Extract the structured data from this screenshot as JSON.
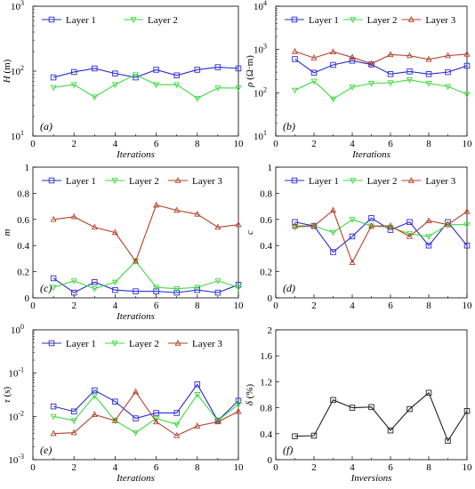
{
  "colors": {
    "blue": "#2b2bd6",
    "green": "#3fd93f",
    "red": "#b5402a",
    "black": "#222222"
  },
  "chart_data": [
    {
      "id": "a",
      "type": "line",
      "panel_label": "(a)",
      "ylabel_main": "H",
      "ylabel_unit": " (m)",
      "xlabel": "Iterations",
      "yscale": "log",
      "ylim": [
        10,
        1000
      ],
      "xlim": [
        0,
        10
      ],
      "xticks": [
        0,
        2,
        4,
        6,
        8,
        10
      ],
      "yticks": [
        {
          "v": 10,
          "label": "10",
          "exp": "1"
        },
        {
          "v": 100,
          "label": "10",
          "exp": "2"
        },
        {
          "v": 1000,
          "label": "10",
          "exp": "3"
        }
      ],
      "x": [
        1,
        2,
        3,
        4,
        5,
        6,
        7,
        8,
        9,
        10
      ],
      "legend": "top",
      "series": [
        {
          "name": "Layer 1",
          "color": "#2b2bd6",
          "marker": "square",
          "values": [
            80,
            97,
            110,
            92,
            80,
            105,
            86,
            105,
            115,
            110
          ]
        },
        {
          "name": "Layer 2",
          "color": "#3fd93f",
          "marker": "tri-down",
          "values": [
            56,
            62,
            40,
            62,
            88,
            62,
            62,
            38,
            55,
            55
          ]
        }
      ]
    },
    {
      "id": "b",
      "type": "line",
      "panel_label": "(b)",
      "ylabel_main": "ρ",
      "ylabel_unit": " (Ω·m)",
      "xlabel": "Iterations",
      "yscale": "log",
      "ylim": [
        10,
        10000
      ],
      "xlim": [
        0,
        10
      ],
      "xticks": [
        0,
        2,
        4,
        6,
        8,
        10
      ],
      "yticks": [
        {
          "v": 10,
          "label": "10",
          "exp": "1"
        },
        {
          "v": 100,
          "label": "10",
          "exp": "2"
        },
        {
          "v": 1000,
          "label": "10",
          "exp": "3"
        },
        {
          "v": 10000,
          "label": "10",
          "exp": "4"
        }
      ],
      "x": [
        1,
        2,
        3,
        4,
        5,
        6,
        7,
        8,
        9,
        10
      ],
      "legend": "top",
      "series": [
        {
          "name": "Layer 1",
          "color": "#2b2bd6",
          "marker": "square",
          "values": [
            600,
            290,
            440,
            550,
            450,
            270,
            310,
            270,
            300,
            420
          ]
        },
        {
          "name": "Layer 2",
          "color": "#3fd93f",
          "marker": "tri-down",
          "values": [
            115,
            185,
            72,
            135,
            165,
            170,
            200,
            165,
            140,
            92
          ]
        },
        {
          "name": "Layer 3",
          "color": "#b5402a",
          "marker": "tri-up",
          "values": [
            900,
            640,
            880,
            660,
            470,
            760,
            720,
            590,
            720,
            780
          ]
        }
      ]
    },
    {
      "id": "c",
      "type": "line",
      "panel_label": "(c)",
      "ylabel_main": "m",
      "ylabel_unit": "",
      "xlabel": "Iterations",
      "yscale": "linear",
      "ylim": [
        0,
        1
      ],
      "xlim": [
        0,
        10
      ],
      "xticks": [
        0,
        2,
        4,
        6,
        8,
        10
      ],
      "yticks": [
        {
          "v": 0,
          "label": "0"
        },
        {
          "v": 0.2,
          "label": "0.2"
        },
        {
          "v": 0.4,
          "label": "0.4"
        },
        {
          "v": 0.6,
          "label": "0.6"
        },
        {
          "v": 0.8,
          "label": "0.8"
        },
        {
          "v": 1,
          "label": "1"
        }
      ],
      "x": [
        1,
        2,
        3,
        4,
        5,
        6,
        7,
        8,
        9,
        10
      ],
      "legend": "top",
      "series": [
        {
          "name": "Layer 1",
          "color": "#2b2bd6",
          "marker": "square",
          "values": [
            0.15,
            0.04,
            0.12,
            0.06,
            0.05,
            0.05,
            0.04,
            0.06,
            0.04,
            0.1
          ]
        },
        {
          "name": "Layer 2",
          "color": "#3fd93f",
          "marker": "tri-down",
          "values": [
            0.08,
            0.13,
            0.07,
            0.12,
            0.28,
            0.08,
            0.07,
            0.08,
            0.13,
            0.08
          ]
        },
        {
          "name": "Layer 3",
          "color": "#b5402a",
          "marker": "tri-up",
          "values": [
            0.6,
            0.62,
            0.54,
            0.5,
            0.28,
            0.71,
            0.67,
            0.64,
            0.54,
            0.56
          ]
        }
      ]
    },
    {
      "id": "d",
      "type": "line",
      "panel_label": "(d)",
      "ylabel_main": "c",
      "ylabel_unit": "",
      "xlabel": "",
      "yscale": "linear",
      "ylim": [
        0,
        1
      ],
      "xlim": [
        0,
        10
      ],
      "xticks": [
        0,
        2,
        4,
        6,
        8,
        10
      ],
      "yticks": [
        {
          "v": 0,
          "label": "0"
        },
        {
          "v": 0.2,
          "label": "0.2"
        },
        {
          "v": 0.4,
          "label": "0.4"
        },
        {
          "v": 0.6,
          "label": "0.6"
        },
        {
          "v": 0.8,
          "label": "0.8"
        },
        {
          "v": 1,
          "label": "1"
        }
      ],
      "x": [
        1,
        2,
        3,
        4,
        5,
        6,
        7,
        8,
        9,
        10
      ],
      "legend": "top",
      "series": [
        {
          "name": "Layer 1",
          "color": "#2b2bd6",
          "marker": "square",
          "values": [
            0.58,
            0.55,
            0.35,
            0.47,
            0.61,
            0.52,
            0.58,
            0.4,
            0.58,
            0.4
          ]
        },
        {
          "name": "Layer 2",
          "color": "#3fd93f",
          "marker": "tri-down",
          "values": [
            0.54,
            0.55,
            0.5,
            0.6,
            0.55,
            0.54,
            0.49,
            0.47,
            0.56,
            0.56
          ]
        },
        {
          "name": "Layer 3",
          "color": "#b5402a",
          "marker": "tri-up",
          "values": [
            0.55,
            0.55,
            0.67,
            0.27,
            0.55,
            0.55,
            0.47,
            0.59,
            0.56,
            0.66
          ]
        }
      ]
    },
    {
      "id": "e",
      "type": "line",
      "panel_label": "(e)",
      "ylabel_main": "τ",
      "ylabel_unit": " (s)",
      "xlabel": "Iterations",
      "yscale": "log",
      "ylim": [
        0.001,
        1
      ],
      "xlim": [
        0,
        10
      ],
      "xticks": [
        0,
        2,
        4,
        6,
        8,
        10
      ],
      "yticks": [
        {
          "v": 0.001,
          "label": "10",
          "exp": "-3"
        },
        {
          "v": 0.01,
          "label": "10",
          "exp": "-2"
        },
        {
          "v": 0.1,
          "label": "10",
          "exp": "-1"
        },
        {
          "v": 1,
          "label": "10",
          "exp": "0"
        }
      ],
      "x": [
        1,
        2,
        3,
        4,
        5,
        6,
        7,
        8,
        9,
        10
      ],
      "legend": "top",
      "series": [
        {
          "name": "Layer 1",
          "color": "#2b2bd6",
          "marker": "square",
          "values": [
            0.017,
            0.013,
            0.04,
            0.022,
            0.009,
            0.012,
            0.012,
            0.055,
            0.008,
            0.023
          ]
        },
        {
          "name": "Layer 2",
          "color": "#3fd93f",
          "marker": "tri-down",
          "values": [
            0.01,
            0.008,
            0.03,
            0.008,
            0.0042,
            0.009,
            0.0065,
            0.032,
            0.008,
            0.019
          ]
        },
        {
          "name": "Layer 3",
          "color": "#b5402a",
          "marker": "tri-up",
          "values": [
            0.004,
            0.0042,
            0.011,
            0.008,
            0.037,
            0.0075,
            0.0036,
            0.006,
            0.0075,
            0.013
          ]
        }
      ]
    },
    {
      "id": "f",
      "type": "line",
      "panel_label": "(f)",
      "ylabel_main": "δ",
      "ylabel_unit": " (%)",
      "xlabel": "Inversions",
      "yscale": "linear",
      "ylim": [
        0,
        2
      ],
      "xlim": [
        0,
        10
      ],
      "xticks": [
        0,
        2,
        4,
        6,
        8,
        10
      ],
      "yticks": [
        {
          "v": 0,
          "label": "0"
        },
        {
          "v": 0.4,
          "label": "0.4"
        },
        {
          "v": 0.8,
          "label": "0.8"
        },
        {
          "v": 1.2,
          "label": "1.2"
        },
        {
          "v": 1.6,
          "label": "1.6"
        },
        {
          "v": 2,
          "label": "2"
        }
      ],
      "x": [
        1,
        2,
        3,
        4,
        5,
        6,
        7,
        8,
        9,
        10
      ],
      "legend": "none",
      "series": [
        {
          "name": "",
          "color": "#222222",
          "marker": "square",
          "values": [
            0.36,
            0.37,
            0.92,
            0.8,
            0.81,
            0.45,
            0.78,
            1.03,
            0.29,
            0.75
          ]
        }
      ]
    }
  ]
}
